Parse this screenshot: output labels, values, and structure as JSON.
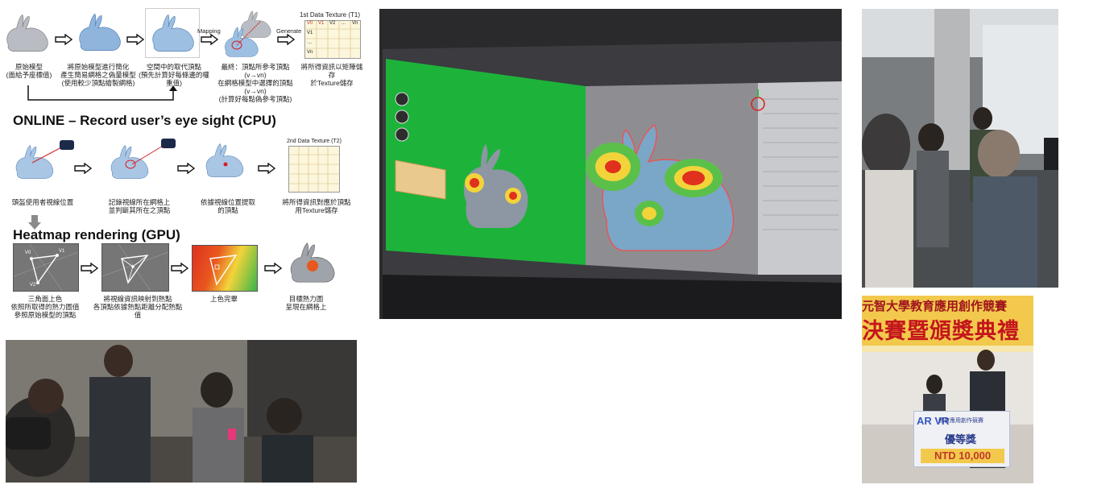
{
  "pipeline": {
    "top_labels": {
      "mapping": "Mapping",
      "generate": "Generate",
      "data_texture_1": "1st Data Texture (T1)",
      "texture_row_v": [
        "V0",
        "V1",
        "...",
        "Vn"
      ],
      "texture_col_v": [
        "V0",
        "V1",
        "V2",
        "...",
        "Vn"
      ]
    },
    "top_captions": [
      "原始模型\n(面給予座標值)",
      "將原始模型進行簡化\n產生簡易網格之偽量模型\n(使用較少頂點繪製網格)",
      "空間中的取代頂點\n(預先計算好每條邊的權重值)",
      "最終：頂點所參考頂點(v→vn)\n在網格模型中選擇的頂點(v→vn)\n(計算好每點偽參考頂點)",
      "將所得資訊以矩陣儲存\n於Texture儲存"
    ],
    "online_heading": "ONLINE – Record user’s eye sight (CPU)",
    "online_captions": [
      "頭盔使用者視線位置",
      "記錄視線所在網格上\n並判斷其所在之頂點",
      "依據視線位置提取\n的頂點",
      "將所得資訊對應於頂點\n用Texture儲存"
    ],
    "data_texture_2": "2nd Data Texture (T2)",
    "heatmap_heading": "Heatmap rendering (GPU)",
    "gpu_captions": [
      "三角面上色\n依照所取得的熱力圖值\n參照原始模型的頂點",
      "將視線資訊映射到熱點\n各頂點依據熱點距離分配熱點值",
      "上色完畢",
      "目標熱力圖\n呈現在網格上"
    ],
    "vertex_labels": [
      "V0",
      "V1",
      "V2"
    ]
  },
  "award": {
    "banner_line1": "元智大學教育應用創作競賽",
    "banner_line2": "決賽暨頒獎典禮",
    "board_logo": "AR VR",
    "board_header": "教育應用創作競賽",
    "board_award": "優等獎",
    "board_prize": "NTD 10,000"
  },
  "colors": {
    "heat_red": "#e0301e",
    "heat_yellow": "#f2d43a",
    "heat_green": "#39b54a",
    "bunny_grey": "#b8bcc4",
    "mesh_blue": "#6f9fd1",
    "screen_green": "#1db33a",
    "banner_gold": "#f2c94c",
    "banner_red": "#c4161c"
  }
}
